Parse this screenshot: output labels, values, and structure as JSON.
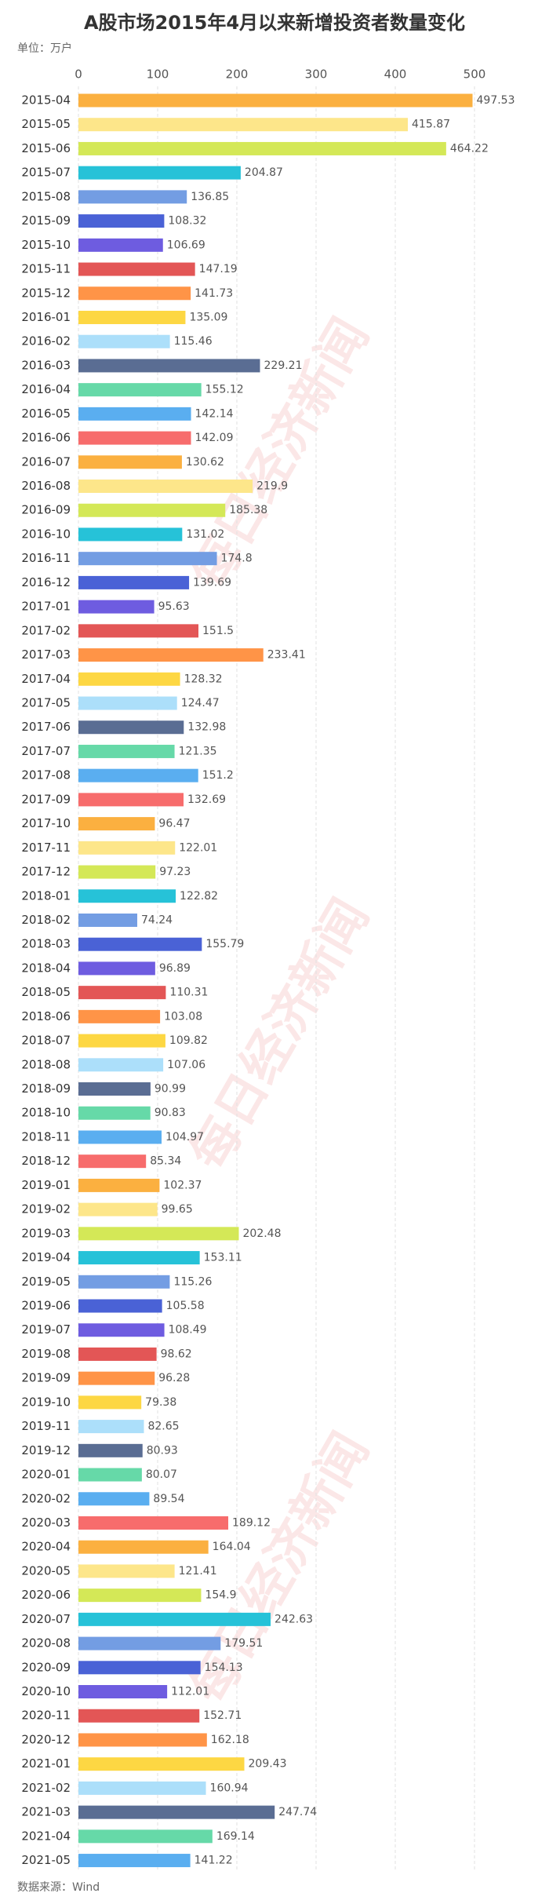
{
  "chart_data": {
    "type": "hbar",
    "title": "A股市场2015年4月以来新增投资者数量变化",
    "unit": "单位：万户",
    "source": "数据来源：Wind",
    "watermark": "每日经济新闻",
    "categories": [
      "2015-04",
      "2015-05",
      "2015-06",
      "2015-07",
      "2015-08",
      "2015-09",
      "2015-10",
      "2015-11",
      "2015-12",
      "2016-01",
      "2016-02",
      "2016-03",
      "2016-04",
      "2016-05",
      "2016-06",
      "2016-07",
      "2016-08",
      "2016-09",
      "2016-10",
      "2016-11",
      "2016-12",
      "2017-01",
      "2017-02",
      "2017-03",
      "2017-04",
      "2017-05",
      "2017-06",
      "2017-07",
      "2017-08",
      "2017-09",
      "2017-10",
      "2017-11",
      "2017-12",
      "2018-01",
      "2018-02",
      "2018-03",
      "2018-04",
      "2018-05",
      "2018-06",
      "2018-07",
      "2018-08",
      "2018-09",
      "2018-10",
      "2018-11",
      "2018-12",
      "2019-01",
      "2019-02",
      "2019-03",
      "2019-04",
      "2019-05",
      "2019-06",
      "2019-07",
      "2019-08",
      "2019-09",
      "2019-10",
      "2019-11",
      "2019-12",
      "2020-01",
      "2020-02",
      "2020-03",
      "2020-04",
      "2020-05",
      "2020-06",
      "2020-07",
      "2020-08",
      "2020-09",
      "2020-10",
      "2020-11",
      "2020-12",
      "2021-01",
      "2021-02",
      "2021-03",
      "2021-04",
      "2021-05"
    ],
    "values": [
      497.53,
      415.87,
      464.22,
      204.87,
      136.85,
      108.32,
      106.69,
      147.19,
      141.73,
      135.09,
      115.46,
      229.21,
      155.12,
      142.14,
      142.09,
      130.62,
      219.9,
      185.38,
      131.02,
      174.8,
      139.69,
      95.63,
      151.5,
      233.41,
      128.32,
      124.47,
      132.98,
      121.35,
      151.2,
      132.69,
      96.47,
      122.01,
      97.23,
      122.82,
      74.24,
      155.79,
      96.89,
      110.31,
      103.08,
      109.82,
      107.06,
      90.99,
      90.83,
      104.97,
      85.34,
      102.37,
      99.65,
      202.48,
      153.11,
      115.26,
      105.58,
      108.49,
      98.62,
      96.28,
      79.38,
      82.65,
      80.93,
      80.07,
      89.54,
      189.12,
      164.04,
      121.41,
      154.9,
      242.63,
      179.51,
      154.13,
      112.01,
      152.71,
      162.18,
      209.43,
      160.94,
      247.74,
      169.14,
      141.22
    ],
    "colors": [
      "#fbb040",
      "#fde68a",
      "#d4e857",
      "#26c2d8",
      "#739de3",
      "#4a62d6",
      "#6e5ce0",
      "#e35656",
      "#ff9447",
      "#fdd743",
      "#acdffa",
      "#5a6d93",
      "#66d9a8",
      "#5aaef0",
      "#f76c6c"
    ],
    "xlim": [
      0,
      500
    ],
    "xticks": [
      0,
      100,
      200,
      300,
      400,
      500
    ],
    "grid": true
  }
}
